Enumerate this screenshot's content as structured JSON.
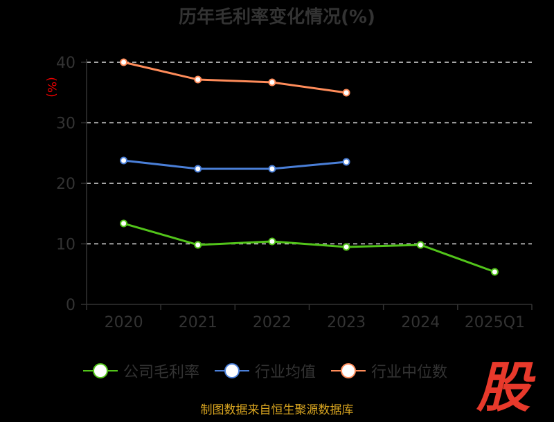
{
  "chart_data": {
    "type": "line",
    "title": "历年毛利率变化情况(%)",
    "ylabel": "(%)",
    "xlabel": "",
    "categories": [
      "2020",
      "2021",
      "2022",
      "2023",
      "2024",
      "2025Q1"
    ],
    "ylim": [
      0,
      40
    ],
    "yticks": [
      0,
      10,
      20,
      30,
      40
    ],
    "grid": true,
    "legend_position": "bottom",
    "series": [
      {
        "name": "公司毛利率",
        "color": "#52c41a",
        "values": [
          13.37,
          9.83,
          10.4,
          9.49,
          9.83,
          5.37
        ]
      },
      {
        "name": "行业均值",
        "color": "#4a7fd8",
        "values": [
          23.77,
          22.4,
          22.4,
          23.54,
          null,
          null
        ]
      },
      {
        "name": "行业中位数",
        "color": "#ff8c5a",
        "values": [
          40.0,
          37.14,
          36.69,
          34.97,
          null,
          null
        ]
      }
    ]
  },
  "source": "制图数据来自恒生聚源数据库",
  "logo_text": "股"
}
